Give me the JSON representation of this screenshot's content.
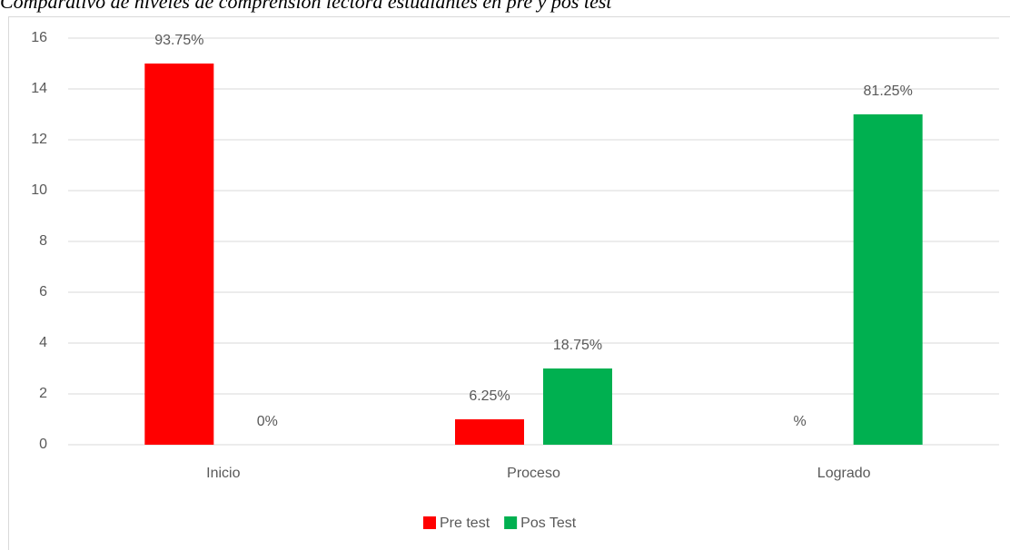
{
  "chart_data": {
    "type": "bar",
    "title": "Comparativo de niveles de comprensión lectora estudiantes en pre y pos test",
    "categories": [
      "Inicio",
      "Proceso",
      "Logrado"
    ],
    "series": [
      {
        "name": "Pre test",
        "color": "#ff0000",
        "values": [
          15,
          1,
          0
        ],
        "value_labels": [
          "93.75%",
          "6.25%",
          "%"
        ]
      },
      {
        "name": "Pos Test",
        "color": "#00b050",
        "values": [
          0,
          3,
          13
        ],
        "value_labels": [
          "0%",
          "18.75%",
          "81.25%"
        ]
      }
    ],
    "ylim": [
      0,
      16
    ],
    "yticks": [
      0,
      2,
      4,
      6,
      8,
      10,
      12,
      14,
      16
    ],
    "grid": true,
    "legend": "bottom"
  }
}
